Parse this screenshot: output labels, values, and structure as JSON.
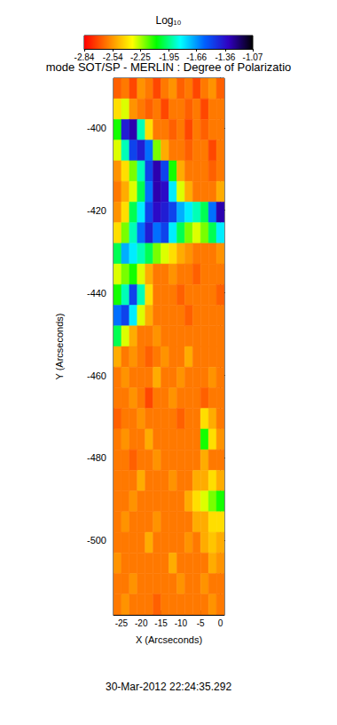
{
  "chart_data": {
    "type": "heatmap",
    "title": "mode SOT/SP - MERLIN : Degree of Polarizatio",
    "xlabel": "X (Arcseconds)",
    "ylabel": "Y (Arcseconds)",
    "xlim": [
      -27,
      1
    ],
    "xticks": [
      -25,
      -20,
      -15,
      -10,
      -5,
      0
    ],
    "ylim": [
      -518,
      -388
    ],
    "yticks": [
      -500,
      -480,
      -460,
      -440,
      -420,
      -400
    ],
    "x": [
      -26,
      -24,
      -22,
      -20,
      -18,
      -16,
      -14,
      -12,
      -10,
      -8,
      -6,
      -4,
      -2,
      0
    ],
    "y": [
      -390.5,
      -395.5,
      -400.5,
      -405.5,
      -410.5,
      -415.5,
      -420.5,
      -425.5,
      -430.5,
      -435.5,
      -440.5,
      -445.5,
      -450.5,
      -455.5,
      -460.5,
      -465.5,
      -470.5,
      -475.5,
      -480.5,
      -485.5,
      -490.5,
      -495.5,
      -500.5,
      -505.5,
      -510.5,
      -515.5
    ],
    "values": [
      [
        -2.65,
        -2.6,
        -2.7,
        -2.55,
        -2.6,
        -2.7,
        -2.6,
        -2.55,
        -2.65,
        -2.6,
        -2.7,
        -2.6,
        -2.55,
        -2.65
      ],
      [
        -2.4,
        -2.3,
        -2.55,
        -2.6,
        -2.65,
        -2.6,
        -2.7,
        -2.6,
        -2.6,
        -2.65,
        -2.6,
        -2.7,
        -2.6,
        -2.6
      ],
      [
        -2.1,
        -1.4,
        -1.3,
        -1.9,
        -2.4,
        -2.6,
        -2.6,
        -2.65,
        -2.6,
        -2.7,
        -2.6,
        -2.65,
        -2.6,
        -2.6
      ],
      [
        -2.3,
        -1.9,
        -1.5,
        -1.4,
        -1.6,
        -2.2,
        -2.5,
        -2.6,
        -2.6,
        -2.65,
        -2.6,
        -2.6,
        -2.7,
        -2.6
      ],
      [
        -2.55,
        -2.4,
        -2.2,
        -1.9,
        -1.5,
        -1.3,
        -1.5,
        -2.1,
        -2.5,
        -2.6,
        -2.6,
        -2.6,
        -2.65,
        -2.6
      ],
      [
        -2.6,
        -2.5,
        -2.3,
        -2.0,
        -1.6,
        -1.3,
        -1.35,
        -1.8,
        -2.3,
        -2.5,
        -2.6,
        -2.6,
        -2.6,
        -2.5
      ],
      [
        -2.55,
        -2.4,
        -2.0,
        -1.8,
        -1.5,
        -1.35,
        -1.4,
        -1.5,
        -1.7,
        -1.8,
        -1.9,
        -2.0,
        -1.6,
        -1.3
      ],
      [
        -2.4,
        -2.2,
        -1.9,
        -1.6,
        -1.4,
        -1.6,
        -1.5,
        -1.8,
        -2.0,
        -2.2,
        -2.3,
        -2.2,
        -2.0,
        -1.8
      ],
      [
        -2.0,
        -1.7,
        -1.8,
        -1.9,
        -2.0,
        -2.2,
        -2.3,
        -2.4,
        -2.5,
        -2.55,
        -2.6,
        -2.6,
        -2.6,
        -2.55
      ],
      [
        -2.3,
        -2.2,
        -2.1,
        -2.3,
        -2.5,
        -2.6,
        -2.6,
        -2.55,
        -2.6,
        -2.6,
        -2.65,
        -2.6,
        -2.6,
        -2.6
      ],
      [
        -2.1,
        -1.9,
        -1.5,
        -1.9,
        -2.4,
        -2.6,
        -2.6,
        -2.6,
        -2.65,
        -2.6,
        -2.6,
        -2.6,
        -2.6,
        -2.65
      ],
      [
        -1.6,
        -1.5,
        -1.8,
        -2.3,
        -2.5,
        -2.6,
        -2.6,
        -2.6,
        -2.6,
        -2.65,
        -2.6,
        -2.6,
        -2.6,
        -2.6
      ],
      [
        -2.0,
        -2.3,
        -2.5,
        -2.6,
        -2.6,
        -2.55,
        -2.6,
        -2.6,
        -2.6,
        -2.6,
        -2.6,
        -2.6,
        -2.6,
        -2.6
      ],
      [
        -2.5,
        -2.6,
        -2.55,
        -2.6,
        -2.65,
        -2.6,
        -2.55,
        -2.6,
        -2.6,
        -2.5,
        -2.6,
        -2.6,
        -2.6,
        -2.6
      ],
      [
        -2.6,
        -2.55,
        -2.6,
        -2.6,
        -2.6,
        -2.5,
        -2.6,
        -2.6,
        -2.55,
        -2.6,
        -2.6,
        -2.6,
        -2.55,
        -2.6
      ],
      [
        -2.6,
        -2.6,
        -2.55,
        -2.6,
        -2.7,
        -2.6,
        -2.6,
        -2.55,
        -2.6,
        -2.6,
        -2.6,
        -2.65,
        -2.6,
        -2.6
      ],
      [
        -2.65,
        -2.6,
        -2.6,
        -2.55,
        -2.6,
        -2.6,
        -2.6,
        -2.6,
        -2.65,
        -2.6,
        -2.6,
        -2.4,
        -2.5,
        -2.6
      ],
      [
        -2.6,
        -2.55,
        -2.6,
        -2.6,
        -2.5,
        -2.6,
        -2.6,
        -2.6,
        -2.6,
        -2.6,
        -2.6,
        -2.1,
        -2.4,
        -2.55
      ],
      [
        -2.6,
        -2.6,
        -2.65,
        -2.6,
        -2.6,
        -2.55,
        -2.6,
        -2.6,
        -2.6,
        -2.6,
        -2.6,
        -2.5,
        -2.6,
        -2.6
      ],
      [
        -2.6,
        -2.6,
        -2.6,
        -2.5,
        -2.6,
        -2.6,
        -2.6,
        -2.55,
        -2.6,
        -2.6,
        -2.5,
        -2.5,
        -2.4,
        -2.5
      ],
      [
        -2.6,
        -2.6,
        -2.55,
        -2.6,
        -2.6,
        -2.6,
        -2.6,
        -2.6,
        -2.6,
        -2.5,
        -2.4,
        -2.3,
        -2.2,
        -2.1
      ],
      [
        -2.6,
        -2.55,
        -2.6,
        -2.6,
        -2.6,
        -2.55,
        -2.6,
        -2.6,
        -2.6,
        -2.6,
        -2.5,
        -2.5,
        -2.4,
        -2.4
      ],
      [
        -2.6,
        -2.6,
        -2.6,
        -2.6,
        -2.5,
        -2.6,
        -2.6,
        -2.6,
        -2.6,
        -2.55,
        -2.6,
        -2.5,
        -2.45,
        -2.5
      ],
      [
        -2.55,
        -2.6,
        -2.6,
        -2.6,
        -2.6,
        -2.6,
        -2.6,
        -2.5,
        -2.6,
        -2.6,
        -2.6,
        -2.6,
        -2.5,
        -2.55
      ],
      [
        -2.6,
        -2.6,
        -2.55,
        -2.6,
        -2.6,
        -2.6,
        -2.6,
        -2.6,
        -2.55,
        -2.6,
        -2.6,
        -2.55,
        -2.6,
        -2.6
      ],
      [
        -2.6,
        -2.55,
        -2.6,
        -2.6,
        -2.6,
        -2.65,
        -2.6,
        -2.6,
        -2.6,
        -2.6,
        -2.6,
        -2.6,
        -2.55,
        -2.6
      ]
    ],
    "colorbar": {
      "title": "Log₁₀",
      "range": [
        -2.84,
        -1.07
      ],
      "ticks": [
        -2.84,
        -2.54,
        -2.25,
        -1.95,
        -1.66,
        -1.36,
        -1.07
      ]
    },
    "annotations": [
      "30-Mar-2012 22:24:35.292"
    ]
  }
}
